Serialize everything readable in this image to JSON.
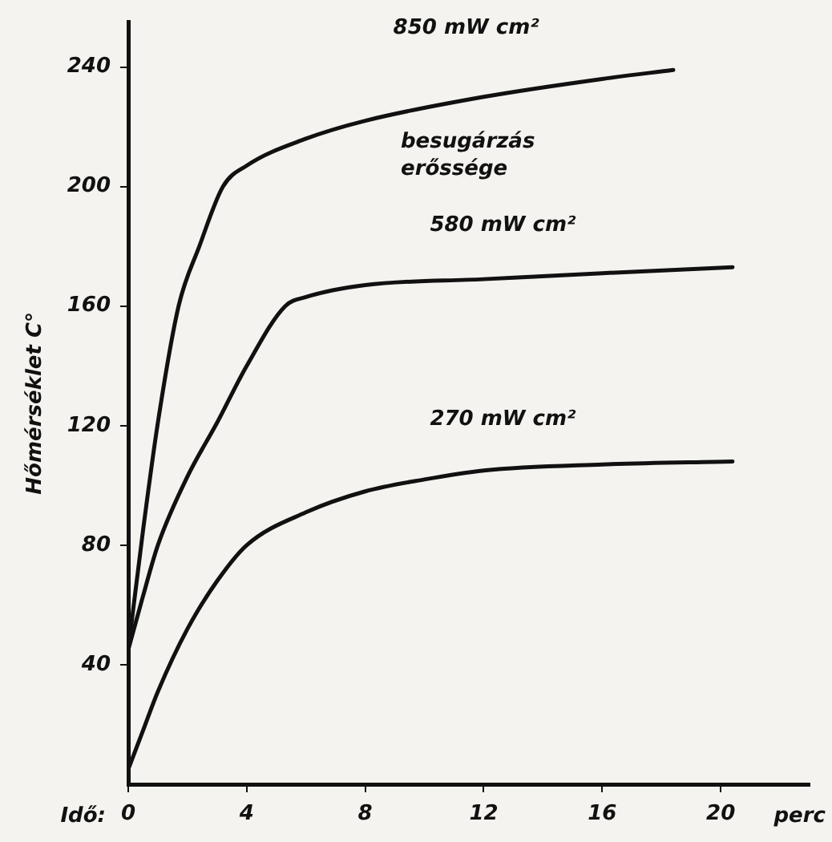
{
  "chart_data": {
    "type": "line",
    "ylabel": "Hőmérséklet C°",
    "xlabel": "perc",
    "annotations": [
      "Idő:",
      "besugárzás erőssége"
    ],
    "xlim": [
      0,
      23
    ],
    "xticks": [
      0,
      4,
      8,
      12,
      16,
      20
    ],
    "ylim": [
      0,
      255
    ],
    "yticks": [
      40,
      80,
      120,
      160,
      200,
      240
    ],
    "grid": false,
    "legend": false,
    "marker": "none",
    "line_style": "solid",
    "series": [
      {
        "name": "850 mW cm²",
        "color": "#111111",
        "x": [
          0,
          0.5,
          1,
          1.7,
          2.4,
          3.2,
          4,
          6,
          8,
          12,
          16,
          18.4
        ],
        "values": [
          45,
          85,
          121,
          160,
          180,
          200,
          207,
          216,
          222,
          230,
          236,
          239
        ]
      },
      {
        "name": "580 mW cm²",
        "color": "#111111",
        "x": [
          0,
          0.5,
          1,
          2,
          3,
          4,
          5.3,
          6,
          8,
          12,
          16,
          20.4
        ],
        "values": [
          45,
          63,
          80,
          103,
          121,
          140,
          160,
          163,
          167,
          169,
          171,
          173
        ]
      },
      {
        "name": "270 mW cm²",
        "color": "#111111",
        "x": [
          0,
          0.5,
          1,
          2,
          3,
          4,
          6,
          8,
          10,
          12,
          16,
          20.4
        ],
        "values": [
          5,
          18,
          31,
          52,
          68,
          80,
          91,
          98,
          102,
          105,
          107,
          108
        ]
      }
    ]
  }
}
